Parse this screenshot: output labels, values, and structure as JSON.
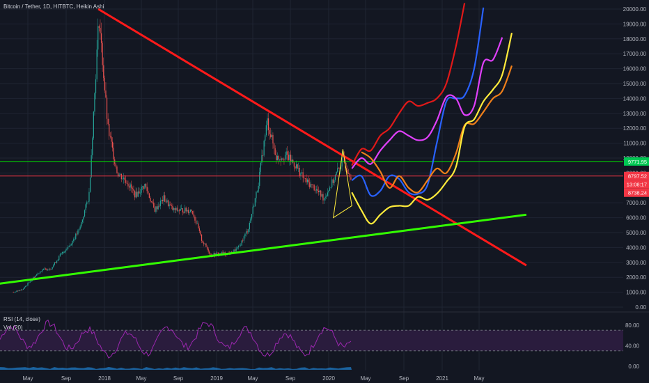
{
  "chart_data": {
    "type": "line",
    "title": "Bitcoin / Tether, 1D, HITBTC, Heikin Ashi",
    "interval": "1D",
    "exchange": "HITBTC",
    "style": "Heikin Ashi",
    "x_labels": [
      "May",
      "Sep",
      "2018",
      "May",
      "Sep",
      "2019",
      "May",
      "Sep",
      "2020",
      "May",
      "Sep",
      "2021",
      "May"
    ],
    "y_ticks": [
      "20000.00",
      "19000.00",
      "18000.00",
      "17000.00",
      "16000.00",
      "15000.00",
      "14000.00",
      "13000.00",
      "12000.00",
      "11000.00",
      "10000.00",
      "9000.00",
      "7000.00",
      "6000.00",
      "5000.00",
      "4000.00",
      "3000.00",
      "2000.00",
      "1000.00",
      "0.00"
    ],
    "ylim": [
      0,
      20500
    ],
    "grid": true,
    "price_badges": [
      {
        "label": "9771.95",
        "color": "#00c853",
        "text_color": "#000000"
      },
      {
        "label": "8797.52",
        "color": "#f23645",
        "text_color": "#ffffff"
      },
      {
        "label": "13:08:17",
        "color": "#f23645",
        "text_color": "#ffffff"
      },
      {
        "label": "8738.24",
        "color": "#f23645",
        "text_color": "#ffffff"
      }
    ],
    "horizontal_lines": [
      {
        "value": 9771.95,
        "color": "#00e600"
      },
      {
        "value": 8797.52,
        "color": "#f23645"
      }
    ],
    "price_series": {
      "dates": [
        "2017-03",
        "2017-04",
        "2017-05",
        "2017-06",
        "2017-07",
        "2017-08",
        "2017-09",
        "2017-10",
        "2017-11",
        "2017-12-17",
        "2018-01",
        "2018-02",
        "2018-03",
        "2018-04",
        "2018-05",
        "2018-06",
        "2018-07",
        "2018-08",
        "2018-09",
        "2018-10",
        "2018-11",
        "2018-12",
        "2019-01",
        "2019-02",
        "2019-03",
        "2019-04",
        "2019-05",
        "2019-06",
        "2019-07",
        "2019-08",
        "2019-09",
        "2019-10",
        "2019-11",
        "2019-12",
        "2020-01",
        "2020-02",
        "2020-03"
      ],
      "values": [
        1000,
        1200,
        1900,
        2500,
        2600,
        3500,
        4200,
        5200,
        7500,
        19500,
        12000,
        9000,
        8500,
        7500,
        8200,
        6500,
        7300,
        6500,
        6500,
        6500,
        4500,
        3500,
        3600,
        3600,
        4000,
        5300,
        8000,
        12500,
        10000,
        10200,
        9500,
        8500,
        8000,
        7300,
        8500,
        9900,
        8700
      ]
    },
    "trendlines": [
      {
        "name": "",
        "color": "#ff1a1a",
        "from": [
          "2017-12-15",
          20000
        ],
        "to": [
          "2021-10-01",
          2800
        ]
      },
      {
        "name": "",
        "color": "#33ff00",
        "from": [
          "2016-12-15",
          1450
        ],
        "to": [
          "2021-10-01",
          6200
        ]
      }
    ],
    "projections": [
      {
        "color": "#e01919",
        "dates": [
          "2020-03",
          "2020-04",
          "2020-05",
          "2020-06",
          "2020-07",
          "2020-08",
          "2020-09",
          "2020-10",
          "2020-11",
          "2020-12",
          "2021-01",
          "2021-02",
          "2021-03"
        ],
        "values": [
          9500,
          10600,
          10500,
          11500,
          12000,
          13000,
          13800,
          13500,
          13700,
          14000,
          15000,
          17500,
          20400
        ]
      },
      {
        "color": "#2962ff",
        "dates": [
          "2020-03",
          "2020-04",
          "2020-05",
          "2020-06",
          "2020-07",
          "2020-08",
          "2020-09",
          "2020-10",
          "2020-11",
          "2020-12",
          "2021-01",
          "2021-02",
          "2021-03",
          "2021-04",
          "2021-05"
        ],
        "values": [
          8500,
          8800,
          7500,
          7800,
          8800,
          8600,
          7700,
          7600,
          8200,
          11000,
          13800,
          14000,
          14200,
          16000,
          20100
        ]
      },
      {
        "color": "#e040fb",
        "dates": [
          "2020-03",
          "2020-04",
          "2020-05",
          "2020-06",
          "2020-07",
          "2020-08",
          "2020-09",
          "2020-10",
          "2020-11",
          "2020-12",
          "2021-01",
          "2021-02",
          "2021-03",
          "2021-04",
          "2021-05",
          "2021-06",
          "2021-07"
        ],
        "values": [
          9300,
          10000,
          9600,
          10500,
          11200,
          11800,
          11500,
          11200,
          11400,
          12500,
          14100,
          14000,
          12900,
          13500,
          16400,
          16600,
          18100
        ]
      },
      {
        "color": "#ef7f1a",
        "dates": [
          "2020-04",
          "2020-05",
          "2020-06",
          "2020-07",
          "2020-08",
          "2020-09",
          "2020-10",
          "2020-11",
          "2020-12",
          "2021-01",
          "2021-02",
          "2021-03",
          "2021-04",
          "2021-05",
          "2021-06",
          "2021-07",
          "2021-08"
        ],
        "values": [
          10400,
          10000,
          9100,
          8000,
          8800,
          8000,
          7700,
          8500,
          9300,
          9000,
          10300,
          12200,
          12300,
          13100,
          14000,
          14500,
          16200
        ]
      },
      {
        "color": "#ffeb3b",
        "dates": [
          "2020-03",
          "2020-04",
          "2020-05",
          "2020-06",
          "2020-07",
          "2020-08",
          "2020-09",
          "2020-10",
          "2020-11",
          "2020-12",
          "2021-01",
          "2021-02",
          "2021-03",
          "2021-04",
          "2021-05",
          "2021-06",
          "2021-07",
          "2021-08"
        ],
        "values": [
          7700,
          6500,
          5600,
          6200,
          6700,
          6800,
          6800,
          7400,
          7200,
          7600,
          8400,
          9400,
          12100,
          12600,
          13800,
          14600,
          15600,
          18400
        ]
      }
    ],
    "triangle_pattern": {
      "color": "#ffeb3b",
      "points": [
        [
          "2020-01",
          6000
        ],
        [
          "2020-02",
          10600
        ],
        [
          "2020-03",
          6800
        ]
      ]
    },
    "rsi": {
      "label": "RSI (14, close)",
      "y_ticks": [
        "80.00",
        "40.00"
      ],
      "band": [
        30,
        70
      ],
      "color": "#9c27b0"
    },
    "volume": {
      "label": "Vol (20)",
      "y_ticks": [
        "0.00"
      ],
      "color": "#2196f3"
    }
  }
}
